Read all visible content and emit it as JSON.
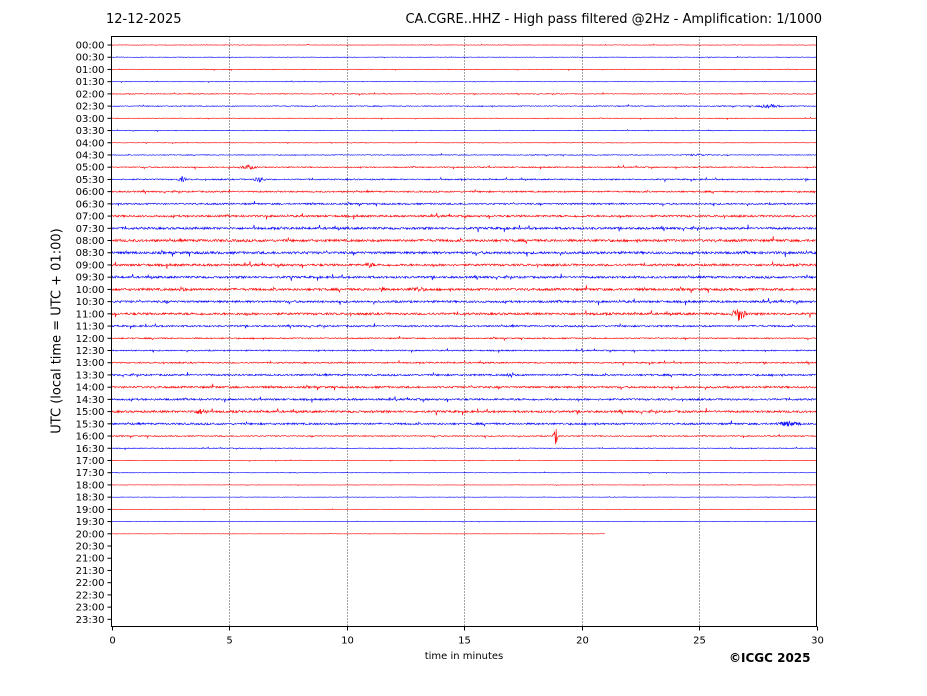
{
  "header": {
    "date": "12-12-2025",
    "title": "CA.CGRE..HHZ - High pass filtered @2Hz - Amplification: 1/1000"
  },
  "footer": {
    "copyright": "©ICGC 2025"
  },
  "chart_data": {
    "type": "line",
    "title": "CA.CGRE..HHZ - High pass filtered @2Hz - Amplification: 1/1000",
    "xlabel": "time in minutes",
    "ylabel": "UTC (local time = UTC + 01:00)",
    "xlim": [
      0,
      30
    ],
    "x_ticks": [
      0,
      5,
      10,
      15,
      20,
      25,
      30
    ],
    "grid": "vertical dotted lines at 5-minute intervals",
    "row_labels": [
      "00:00",
      "00:30",
      "01:00",
      "01:30",
      "02:00",
      "02:30",
      "03:00",
      "03:30",
      "04:00",
      "04:30",
      "05:00",
      "05:30",
      "06:00",
      "06:30",
      "07:00",
      "07:30",
      "08:00",
      "08:30",
      "09:00",
      "09:30",
      "10:00",
      "10:30",
      "11:00",
      "11:30",
      "12:00",
      "12:30",
      "13:00",
      "13:30",
      "14:00",
      "14:30",
      "15:00",
      "15:30",
      "16:00",
      "16:30",
      "17:00",
      "17:30",
      "18:00",
      "18:30",
      "19:00",
      "19:30",
      "20:00",
      "20:30",
      "21:00",
      "21:30",
      "22:00",
      "22:30",
      "23:00",
      "23:30"
    ],
    "trace_colors": [
      "#ff0000",
      "#0000ff"
    ],
    "trace_noise_levels": [
      0.4,
      0.4,
      0.5,
      0.4,
      0.6,
      0.7,
      0.5,
      0.5,
      0.4,
      0.6,
      0.9,
      1.0,
      1.2,
      1.3,
      1.6,
      1.8,
      2.0,
      2.0,
      1.8,
      1.7,
      1.9,
      1.7,
      1.8,
      1.3,
      1.0,
      1.0,
      1.1,
      1.4,
      1.6,
      1.5,
      1.7,
      1.5,
      0.9,
      0.6,
      0.4,
      0.4,
      0.3,
      0.3,
      0.3,
      0.3,
      0.2,
      0,
      0,
      0,
      0,
      0,
      0,
      0
    ],
    "last_trace_end_minute": 21.0,
    "events": [
      {
        "time": "02:30",
        "minute": 28.0,
        "amplitude": 2,
        "width": 0.8
      },
      {
        "time": "04:30",
        "minute": 25.0,
        "amplitude": 1.2,
        "width": 1.0
      },
      {
        "time": "05:00",
        "minute": 5.8,
        "amplitude": 2.5,
        "width": 0.6
      },
      {
        "time": "05:30",
        "minute": 3.0,
        "amplitude": 3,
        "width": 0.3
      },
      {
        "time": "05:30",
        "minute": 6.3,
        "amplitude": 3,
        "width": 0.4
      },
      {
        "time": "09:00",
        "minute": 11.0,
        "amplitude": 3,
        "width": 0.4
      },
      {
        "time": "10:00",
        "minute": 3.0,
        "amplitude": 3,
        "width": 0.3
      },
      {
        "time": "10:00",
        "minute": 11.5,
        "amplitude": 3,
        "width": 0.3
      },
      {
        "time": "10:00",
        "minute": 13.0,
        "amplitude": 3,
        "width": 0.7
      },
      {
        "time": "11:00",
        "minute": 26.7,
        "amplitude": 8,
        "width": 0.4
      },
      {
        "time": "13:30",
        "minute": 17.0,
        "amplitude": 3,
        "width": 0.3
      },
      {
        "time": "15:00",
        "minute": 3.8,
        "amplitude": 3,
        "width": 0.8
      },
      {
        "time": "15:30",
        "minute": 28.8,
        "amplitude": 3,
        "width": 1.0
      },
      {
        "time": "16:00",
        "minute": 18.9,
        "amplitude": 9,
        "width": 0.15
      }
    ]
  }
}
